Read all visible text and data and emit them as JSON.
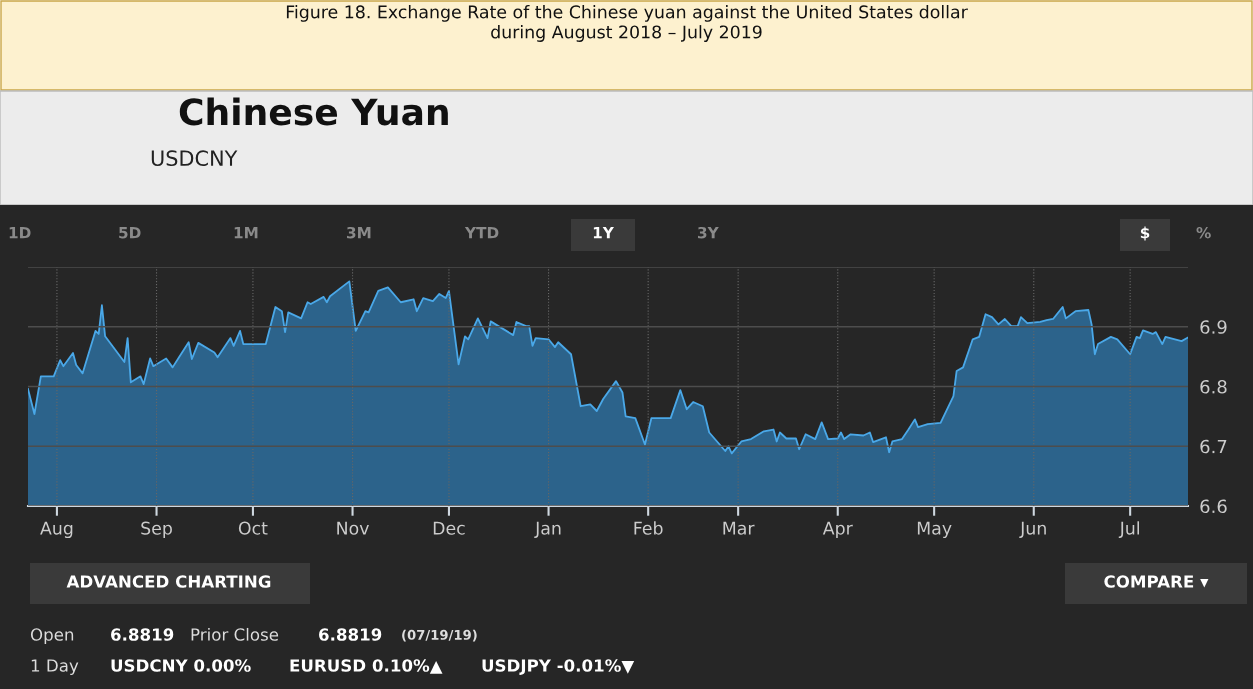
{
  "chart_data": {
    "type": "area",
    "title": "Figure 18. Exchange Rate of the Chinese yuan against the United States dollar\nduring August 2018 – July 2019",
    "subtitle": "Chinese Yuan",
    "annotations": [
      "USDCNY",
      "1D",
      "5D",
      "1M",
      "3M",
      "YTD",
      "1Y",
      "3Y",
      "$",
      "%",
      "ADVANCED CHARTING",
      "COMPARE ▾",
      "Open",
      "6.8819",
      "Prior Close",
      "6.8819",
      "(07/19/19)",
      "1 Day",
      "USDCNY 0.00%",
      "EURUSD 0.10%▲",
      "USDJPY -0.01%▼"
    ],
    "x": [
      "2018-07-23",
      "2018-07-25",
      "2018-07-27",
      "2018-07-31",
      "2018-08-02",
      "2018-08-03",
      "2018-08-06",
      "2018-08-07",
      "2018-08-09",
      "2018-08-13",
      "2018-08-14",
      "2018-08-15",
      "2018-08-16",
      "2018-08-22",
      "2018-08-23",
      "2018-08-24",
      "2018-08-27",
      "2018-08-28",
      "2018-08-30",
      "2018-08-31",
      "2018-09-04",
      "2018-09-06",
      "2018-09-08",
      "2018-09-11",
      "2018-09-12",
      "2018-09-14",
      "2018-09-19",
      "2018-09-20",
      "2018-09-24",
      "2018-09-25",
      "2018-09-27",
      "2018-09-28",
      "2018-10-05",
      "2018-10-08",
      "2018-10-10",
      "2018-10-11",
      "2018-10-12",
      "2018-10-16",
      "2018-10-18",
      "2018-10-19",
      "2018-10-23",
      "2018-10-24",
      "2018-10-25",
      "2018-10-31",
      "2018-11-02",
      "2018-11-05",
      "2018-11-06",
      "2018-11-09",
      "2018-11-12",
      "2018-11-16",
      "2018-11-20",
      "2018-11-21",
      "2018-11-23",
      "2018-11-26",
      "2018-11-28",
      "2018-11-30",
      "2018-12-01",
      "2018-12-04",
      "2018-12-06",
      "2018-12-07",
      "2018-12-10",
      "2018-12-13",
      "2018-12-14",
      "2018-12-21",
      "2018-12-22",
      "2018-12-25",
      "2018-12-26",
      "2018-12-27",
      "2018-12-28",
      "2019-01-01",
      "2019-01-03",
      "2019-01-04",
      "2019-01-08",
      "2019-01-11",
      "2019-01-14",
      "2019-01-16",
      "2019-01-18",
      "2019-01-22",
      "2019-01-24",
      "2019-01-25",
      "2019-01-28",
      "2019-01-31",
      "2019-02-02",
      "2019-02-08",
      "2019-02-11",
      "2019-02-13",
      "2019-02-15",
      "2019-02-18",
      "2019-02-20",
      "2019-02-25",
      "2019-02-26",
      "2019-02-27",
      "2019-03-02",
      "2019-03-05",
      "2019-03-09",
      "2019-03-12",
      "2019-03-13",
      "2019-03-14",
      "2019-03-16",
      "2019-03-19",
      "2019-03-20",
      "2019-03-22",
      "2019-03-25",
      "2019-03-27",
      "2019-03-29",
      "2019-04-01",
      "2019-04-02",
      "2019-04-03",
      "2019-04-05",
      "2019-04-09",
      "2019-04-11",
      "2019-04-12",
      "2019-04-16",
      "2019-04-17",
      "2019-04-18",
      "2019-04-21",
      "2019-04-23",
      "2019-04-25",
      "2019-04-26",
      "2019-04-29",
      "2019-05-03",
      "2019-05-07",
      "2019-05-08",
      "2019-05-10",
      "2019-05-13",
      "2019-05-15",
      "2019-05-17",
      "2019-05-19",
      "2019-05-21",
      "2019-05-23",
      "2019-05-25",
      "2019-05-27",
      "2019-05-28",
      "2019-05-30",
      "2019-06-03",
      "2019-06-05",
      "2019-06-07",
      "2019-06-10",
      "2019-06-11",
      "2019-06-14",
      "2019-06-18",
      "2019-06-19",
      "2019-06-20",
      "2019-06-21",
      "2019-06-25",
      "2019-06-27",
      "2019-07-01",
      "2019-07-03",
      "2019-07-04",
      "2019-07-05",
      "2019-07-08",
      "2019-07-09",
      "2019-07-11",
      "2019-07-12",
      "2019-07-17",
      "2019-07-19"
    ],
    "series": [
      {
        "color": "#4aa8e8",
        "values": [
          6.796,
          6.754,
          6.817,
          6.817,
          6.844,
          6.834,
          6.856,
          6.836,
          6.822,
          6.893,
          6.888,
          6.936,
          6.884,
          6.841,
          6.881,
          6.807,
          6.817,
          6.804,
          6.847,
          6.834,
          6.847,
          6.832,
          6.849,
          6.874,
          6.846,
          6.873,
          6.857,
          6.849,
          6.881,
          6.868,
          6.893,
          6.871,
          6.871,
          6.933,
          6.926,
          6.891,
          6.924,
          6.914,
          6.941,
          6.938,
          6.95,
          6.941,
          6.951,
          6.976,
          6.893,
          6.926,
          6.924,
          6.96,
          6.966,
          6.941,
          6.946,
          6.926,
          6.948,
          6.943,
          6.955,
          6.948,
          6.96,
          6.837,
          6.884,
          6.879,
          6.914,
          6.881,
          6.909,
          6.886,
          6.908,
          6.901,
          6.901,
          6.868,
          6.881,
          6.879,
          6.866,
          6.874,
          6.854,
          6.767,
          6.77,
          6.759,
          6.779,
          6.809,
          6.79,
          6.75,
          6.747,
          6.703,
          6.747,
          6.747,
          6.794,
          6.762,
          6.774,
          6.767,
          6.723,
          6.692,
          6.7,
          6.688,
          6.708,
          6.712,
          6.725,
          6.728,
          6.708,
          6.723,
          6.713,
          6.713,
          6.695,
          6.72,
          6.712,
          6.74,
          6.712,
          6.713,
          6.723,
          6.712,
          6.72,
          6.718,
          6.723,
          6.707,
          6.715,
          6.69,
          6.708,
          6.712,
          6.728,
          6.745,
          6.732,
          6.737,
          6.739,
          6.784,
          6.826,
          6.832,
          6.879,
          6.883,
          6.921,
          6.916,
          6.904,
          6.913,
          6.901,
          6.901,
          6.916,
          6.906,
          6.908,
          6.911,
          6.913,
          6.933,
          6.914,
          6.926,
          6.928,
          6.904,
          6.854,
          6.871,
          6.883,
          6.879,
          6.854,
          6.883,
          6.881,
          6.894,
          6.888,
          6.891,
          6.871,
          6.883,
          6.876,
          6.882
        ]
      }
    ],
    "xlim": [
      "2018-07-23",
      "2019-07-19"
    ],
    "xticks": [
      {
        "value": "2018-08-01",
        "label": "Aug"
      },
      {
        "value": "2018-09-01",
        "label": "Sep"
      },
      {
        "value": "2018-10-01",
        "label": "Oct"
      },
      {
        "value": "2018-11-01",
        "label": "Nov"
      },
      {
        "value": "2018-12-01",
        "label": "Dec"
      },
      {
        "value": "2019-01-01",
        "label": "Jan"
      },
      {
        "value": "2019-02-01",
        "label": "Feb"
      },
      {
        "value": "2019-03-01",
        "label": "Mar"
      },
      {
        "value": "2019-04-01",
        "label": "Apr"
      },
      {
        "value": "2019-05-01",
        "label": "May"
      },
      {
        "value": "2019-06-01",
        "label": "Jun"
      },
      {
        "value": "2019-07-01",
        "label": "Jul"
      }
    ],
    "ylim": [
      6.6,
      7.0
    ],
    "yticks": [
      6.6,
      6.7,
      6.8,
      6.9,
      {
        "value": 7.0,
        "label": null
      }
    ],
    "grid": true
  }
}
